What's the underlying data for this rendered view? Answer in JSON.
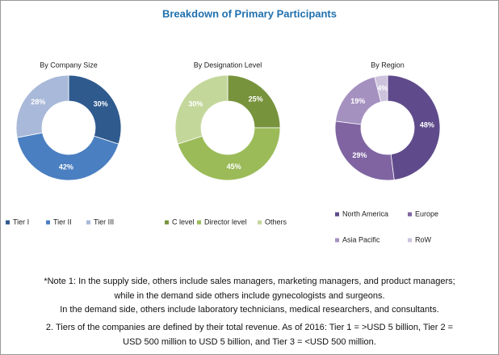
{
  "title": "Breakdown of Primary Participants",
  "chart_data": [
    {
      "type": "pie",
      "title": "By Company Size",
      "categories": [
        "Tier I",
        "Tier II",
        "Tier III"
      ],
      "values": [
        30,
        42,
        28
      ],
      "value_labels": [
        "30%",
        "42%",
        "28%"
      ],
      "colors": [
        "#2e5a8e",
        "#4a7fc1",
        "#a9b9d9"
      ]
    },
    {
      "type": "pie",
      "title": "By Designation Level",
      "categories": [
        "C level",
        "Director level",
        "Others"
      ],
      "values": [
        25,
        45,
        30
      ],
      "value_labels": [
        "25%",
        "45%",
        "30%"
      ],
      "colors": [
        "#77933c",
        "#9bbb59",
        "#c4d79b"
      ]
    },
    {
      "type": "pie",
      "title": "By Region",
      "categories": [
        "North America",
        "Europe",
        "Asia Pacific",
        "RoW"
      ],
      "values": [
        48,
        29,
        19,
        4
      ],
      "value_labels": [
        "48%",
        "29%",
        "19%",
        "4%"
      ],
      "colors": [
        "#5f4b8b",
        "#8064a2",
        "#a591c0",
        "#cdc3dd"
      ]
    }
  ],
  "notes": [
    "*Note 1: In the supply side, others include sales managers, marketing managers, and product managers;",
    "while in the demand side others include gynecologists and surgeons.",
    "In the demand side, others include laboratory technicians, medical researchers, and consultants.",
    "2. Tiers of the companies are defined by their total revenue. As of 2016: Tier 1 = >USD 5 billion, Tier 2 =",
    "USD 500 million to USD 5 billion, and Tier 3 = <USD 500 million."
  ]
}
